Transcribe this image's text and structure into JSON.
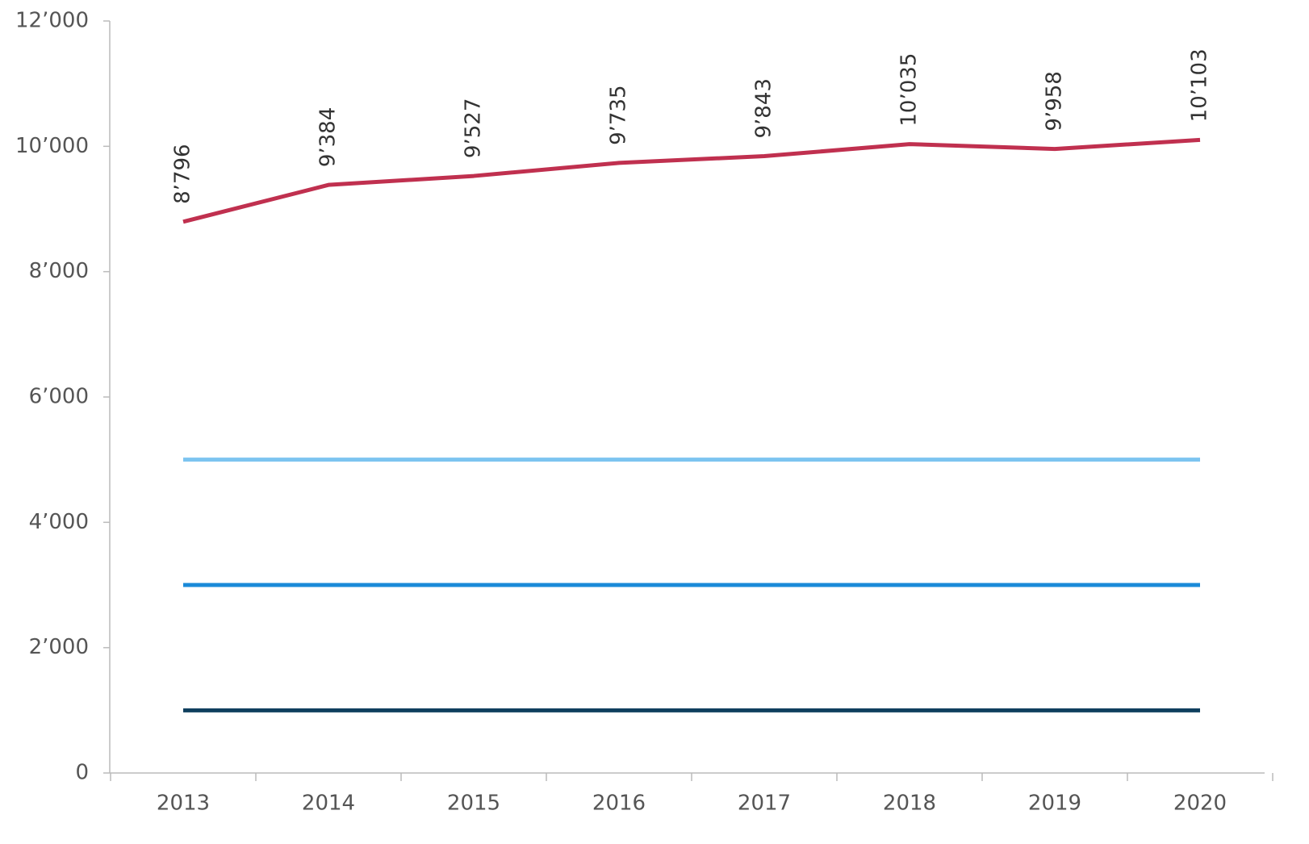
{
  "chart_data": {
    "type": "line",
    "categories": [
      "2013",
      "2014",
      "2015",
      "2016",
      "2017",
      "2018",
      "2019",
      "2020"
    ],
    "series": [
      {
        "color": "#c0304f",
        "values": [
          8796,
          9384,
          9527,
          9735,
          9843,
          10035,
          9958,
          10103
        ],
        "value_labels": [
          "8’796",
          "9’384",
          "9’527",
          "9’735",
          "9’843",
          "10’035",
          "9’958",
          "10’103"
        ]
      },
      {
        "color": "#7cc4f0",
        "values": [
          5000,
          5000,
          5000,
          5000,
          5000,
          5000,
          5000,
          5000
        ]
      },
      {
        "color": "#1a8ad8",
        "values": [
          3000,
          3000,
          3000,
          3000,
          3000,
          3000,
          3000,
          3000
        ]
      },
      {
        "color": "#0f3f5e",
        "values": [
          1000,
          1000,
          1000,
          1000,
          1000,
          1000,
          1000,
          1000
        ]
      }
    ],
    "ylim": [
      0,
      12000
    ],
    "yticks": [
      0,
      {
        "value": 2000,
        "label": "2’000"
      },
      {
        "value": 4000,
        "label": "4’000"
      },
      {
        "value": 6000,
        "label": "6’000"
      },
      {
        "value": 8000,
        "label": "8’000"
      },
      {
        "value": 10000,
        "label": "10’000"
      },
      {
        "value": 12000,
        "label": "12’000"
      }
    ],
    "grid": false
  }
}
